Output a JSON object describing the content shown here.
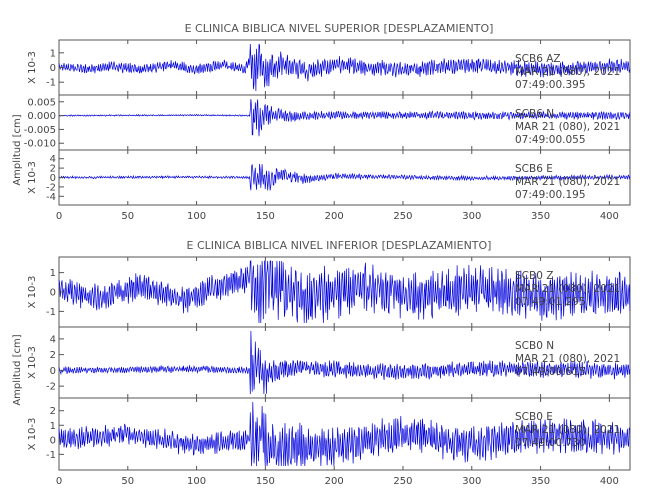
{
  "colors": {
    "trace": "#0000dd",
    "axis": "#555555",
    "text": "#444444"
  },
  "chart_data": [
    {
      "type": "line",
      "title": "E CLINICA BIBLICA NIVEL SUPERIOR [DESPLAZAMIENTO]",
      "ylabel": "Amplitud [cm]",
      "xlim": [
        0,
        415
      ],
      "x_ticks": [
        "0",
        "50",
        "100",
        "150",
        "200",
        "250",
        "300",
        "350",
        "400"
      ],
      "series": [
        {
          "name": "SCB6 AZ",
          "date": "MAR 21 (080), 2021",
          "time": "07:49:00.395",
          "scale": "X 10-3",
          "ylim": [
            -1.6,
            1.6
          ],
          "y_ticks": [
            "1",
            "0",
            "-1"
          ],
          "samples": [
            [
              0,
              0.2
            ],
            [
              20,
              -0.2
            ],
            [
              40,
              0.15
            ],
            [
              60,
              -0.3
            ],
            [
              80,
              0.35
            ],
            [
              100,
              -0.25
            ],
            [
              120,
              0.3
            ],
            [
              135,
              -0.3
            ],
            [
              140,
              1.5
            ],
            [
              142,
              -1.4
            ],
            [
              146,
              1.2
            ],
            [
              150,
              -1.0
            ],
            [
              160,
              0.6
            ],
            [
              180,
              -0.5
            ],
            [
              200,
              0.4
            ],
            [
              250,
              -0.3
            ],
            [
              300,
              0.35
            ],
            [
              350,
              -0.3
            ],
            [
              400,
              0.2
            ],
            [
              415,
              0.1
            ]
          ],
          "envelope": {
            "base": 0.35,
            "event_start": 139,
            "peak": 1.55,
            "decay": 18,
            "tail": 0.18
          }
        },
        {
          "name": "SCB6 N",
          "date": "MAR 21 (080), 2021",
          "time": "07:49:00.055",
          "scale": "",
          "ylim": [
            -0.011,
            0.006
          ],
          "y_ticks": [
            "0.005",
            "0.000",
            "-0.005",
            "-0.010"
          ],
          "samples": [
            [
              0,
              0.0
            ],
            [
              100,
              0.0003
            ],
            [
              139,
              0.0
            ],
            [
              140,
              0.005
            ],
            [
              141,
              -0.009
            ],
            [
              143,
              0.004
            ],
            [
              146,
              -0.004
            ],
            [
              150,
              0.002
            ],
            [
              170,
              -0.001
            ],
            [
              200,
              0.0005
            ],
            [
              300,
              0.0
            ],
            [
              415,
              0.0
            ]
          ],
          "envelope": {
            "base": 0.00025,
            "event_start": 139,
            "peak": 0.0095,
            "decay": 12,
            "tail": 0.0012
          }
        },
        {
          "name": "SCB6 E",
          "date": "MAR 21 (080), 2021",
          "time": "07:49:00.195",
          "scale": "X 10-3",
          "ylim": [
            -5,
            5
          ],
          "y_ticks": [
            "4",
            "2",
            "0",
            "-2",
            "-4"
          ],
          "samples": [
            [
              0,
              0.0
            ],
            [
              100,
              0.2
            ],
            [
              139,
              0.0
            ],
            [
              141,
              3.5
            ],
            [
              143,
              -3.0
            ],
            [
              146,
              2.5
            ],
            [
              150,
              -2.0
            ],
            [
              160,
              1.5
            ],
            [
              180,
              -0.8
            ],
            [
              200,
              0.6
            ],
            [
              300,
              -0.3
            ],
            [
              415,
              0.2
            ]
          ],
          "envelope": {
            "base": 0.25,
            "event_start": 139,
            "peak": 3.6,
            "decay": 22,
            "tail": 0.2
          }
        }
      ]
    },
    {
      "type": "line",
      "title": "E CLINICA BIBLICA NIVEL INFERIOR [DESPLAZAMIENTO]",
      "ylabel": "Amplitud [cm]",
      "xlim": [
        0,
        415
      ],
      "x_ticks": [
        "0",
        "50",
        "100",
        "150",
        "200",
        "250",
        "300",
        "350",
        "400"
      ],
      "series": [
        {
          "name": "SCB0 Z",
          "date": "MAR 21 (080), 2021",
          "time": "07:49:01.295",
          "scale": "X 10-3",
          "ylim": [
            -1.6,
            1.6
          ],
          "y_ticks": [
            "1",
            "0",
            "-1"
          ],
          "samples": [
            [
              0,
              0.2
            ],
            [
              30,
              -0.6
            ],
            [
              60,
              0.7
            ],
            [
              90,
              -0.8
            ],
            [
              120,
              0.8
            ],
            [
              140,
              1.5
            ],
            [
              145,
              -1.5
            ],
            [
              150,
              1.2
            ],
            [
              180,
              -0.6
            ],
            [
              220,
              0.5
            ],
            [
              260,
              -0.5
            ],
            [
              300,
              0.4
            ],
            [
              350,
              -0.5
            ],
            [
              415,
              -0.2
            ]
          ],
          "envelope": {
            "base": 0.7,
            "event_start": 139,
            "peak": 1.6,
            "decay": 30,
            "tail": 0.5
          }
        },
        {
          "name": "SCB0 N",
          "date": "MAR 21 (080), 2021",
          "time": "07:49:00.615",
          "scale": "X 10-3",
          "ylim": [
            -3,
            5
          ],
          "y_ticks": [
            "4",
            "2",
            "0",
            "-2"
          ],
          "samples": [
            [
              0,
              0.0
            ],
            [
              100,
              0.4
            ],
            [
              139,
              0.0
            ],
            [
              140,
              4.5
            ],
            [
              141,
              -3.0
            ],
            [
              144,
              2.0
            ],
            [
              150,
              -1.5
            ],
            [
              170,
              0.8
            ],
            [
              250,
              -0.5
            ],
            [
              300,
              0.4
            ],
            [
              415,
              0.0
            ]
          ],
          "envelope": {
            "base": 0.45,
            "event_start": 139,
            "peak": 4.2,
            "decay": 10,
            "tail": 0.6
          }
        },
        {
          "name": "SCB0 E",
          "date": "MAR 21 (080), 2021",
          "time": "07:49:00.730",
          "scale": "X 10-3",
          "ylim": [
            -1.8,
            2.6
          ],
          "y_ticks": [
            "2",
            "1",
            "0",
            "-1"
          ],
          "samples": [
            [
              0,
              0.0
            ],
            [
              50,
              0.8
            ],
            [
              100,
              -0.8
            ],
            [
              139,
              0.0
            ],
            [
              141,
              2.3
            ],
            [
              143,
              -1.5
            ],
            [
              147,
              1.8
            ],
            [
              150,
              -1.2
            ],
            [
              200,
              -1.0
            ],
            [
              250,
              0.8
            ],
            [
              300,
              -0.6
            ],
            [
              350,
              0.6
            ],
            [
              415,
              0.2
            ]
          ],
          "envelope": {
            "base": 0.75,
            "event_start": 139,
            "peak": 2.0,
            "decay": 25,
            "tail": 0.5
          }
        }
      ]
    }
  ]
}
